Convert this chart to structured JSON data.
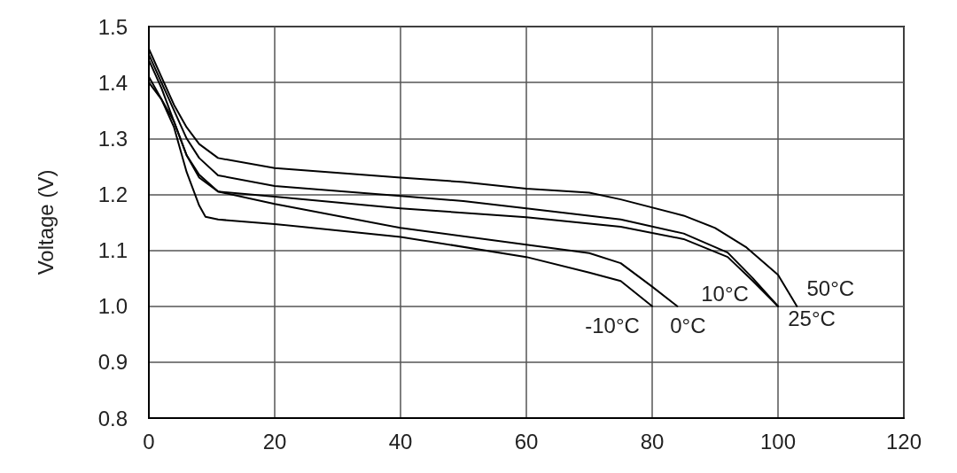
{
  "chart_data": {
    "type": "line",
    "ylabel": "Voltage (V)",
    "xlim": [
      0,
      120
    ],
    "xticks": [
      0,
      20,
      40,
      60,
      80,
      100,
      120
    ],
    "ylim": [
      0.8,
      1.5
    ],
    "yticks": [
      0.8,
      0.9,
      {
        "value": 1,
        "label": "1.0"
      },
      1.1,
      1.2,
      1.3,
      1.4,
      1.5
    ],
    "grid": true,
    "legend": false,
    "marker": "none",
    "line_style": "solid",
    "series": [
      {
        "name": "50°C",
        "color": "#000000",
        "x": [
          0,
          2,
          4,
          6,
          8,
          11,
          20,
          40,
          50,
          60,
          70,
          75,
          85,
          90,
          95,
          100,
          103
        ],
        "values": [
          1.46,
          1.41,
          1.36,
          1.32,
          1.29,
          1.265,
          1.247,
          1.23,
          1.222,
          1.21,
          1.203,
          1.191,
          1.162,
          1.14,
          1.105,
          1.056,
          1.0
        ]
      },
      {
        "name": "25°C",
        "color": "#000000",
        "x": [
          0,
          2,
          4,
          6,
          8,
          11,
          20,
          40,
          50,
          60,
          75,
          85,
          92,
          96,
          100
        ],
        "values": [
          1.45,
          1.4,
          1.35,
          1.3,
          1.265,
          1.234,
          1.215,
          1.197,
          1.188,
          1.175,
          1.155,
          1.13,
          1.096,
          1.05,
          1.0
        ]
      },
      {
        "name": "10°C",
        "color": "#000000",
        "x": [
          0,
          2,
          4,
          6,
          8,
          11,
          20,
          40,
          60,
          75,
          85,
          92,
          96,
          100
        ],
        "values": [
          1.44,
          1.39,
          1.33,
          1.27,
          1.235,
          1.205,
          1.196,
          1.175,
          1.159,
          1.142,
          1.12,
          1.088,
          1.045,
          1.0
        ]
      },
      {
        "name": "0°C",
        "color": "#000000",
        "x": [
          0,
          2,
          4,
          6,
          8,
          11,
          20,
          40,
          60,
          70,
          75,
          80,
          84
        ],
        "values": [
          1.4,
          1.37,
          1.33,
          1.27,
          1.23,
          1.205,
          1.183,
          1.14,
          1.11,
          1.095,
          1.077,
          1.035,
          1.0
        ]
      },
      {
        "name": "-10°C",
        "color": "#000000",
        "x": [
          0,
          2,
          4,
          6,
          8,
          9,
          11,
          20,
          40,
          60,
          70,
          75,
          80
        ],
        "values": [
          1.41,
          1.37,
          1.32,
          1.24,
          1.18,
          1.16,
          1.155,
          1.147,
          1.124,
          1.088,
          1.06,
          1.045,
          1.0
        ]
      }
    ]
  }
}
